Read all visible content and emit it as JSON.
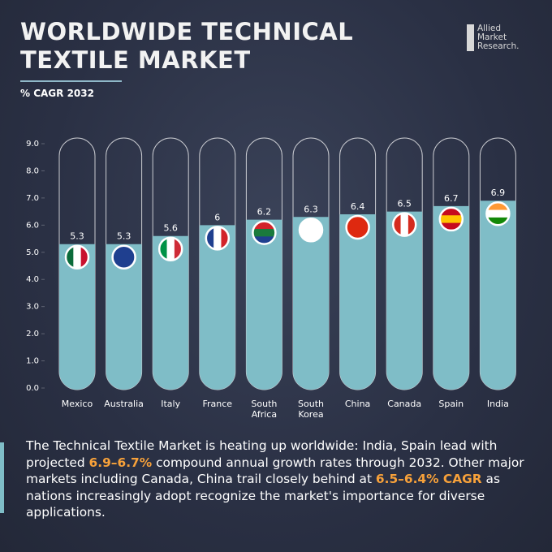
{
  "chart_data": {
    "type": "bar",
    "title": "WORLDWIDE TECHNICAL TEXTILE MARKET",
    "subtitle": "% CAGR 2032",
    "categories": [
      "Mexico",
      "Australia",
      "Italy",
      "France",
      "South Africa",
      "South Korea",
      "China",
      "Canada",
      "Spain",
      "India"
    ],
    "values": [
      5.3,
      5.3,
      5.6,
      6,
      6.2,
      6.3,
      6.4,
      6.5,
      6.7,
      6.9
    ],
    "color": "#7fbdc7",
    "ylim": [
      0,
      9
    ],
    "yticks": [
      {
        "value": 0,
        "label": "0.0"
      },
      {
        "value": 1,
        "label": "1.0"
      },
      {
        "value": 2,
        "label": "2.0"
      },
      {
        "value": 3,
        "label": "3.0"
      },
      {
        "value": 4,
        "label": "4.0"
      },
      {
        "value": 5,
        "label": "5.0"
      },
      {
        "value": 6,
        "label": "6.0"
      },
      {
        "value": 7,
        "label": "7.0"
      },
      {
        "value": 8,
        "label": "8.0"
      },
      {
        "value": 9,
        "label": "9.0"
      }
    ],
    "grid": false
  },
  "logo": [
    "Allied",
    "Market",
    "Research."
  ],
  "caption": [
    "The Technical Textile Market is heating up worldwide: India, Spain lead with projected ",
    "6.9–6.7%",
    " compound annual growth rates through 2032. Other major markets including Canada, China trail closely behind at ",
    "6.5–6.4% CAGR",
    " as nations increasingly adopt recognize the market's importance for diverse applications."
  ]
}
